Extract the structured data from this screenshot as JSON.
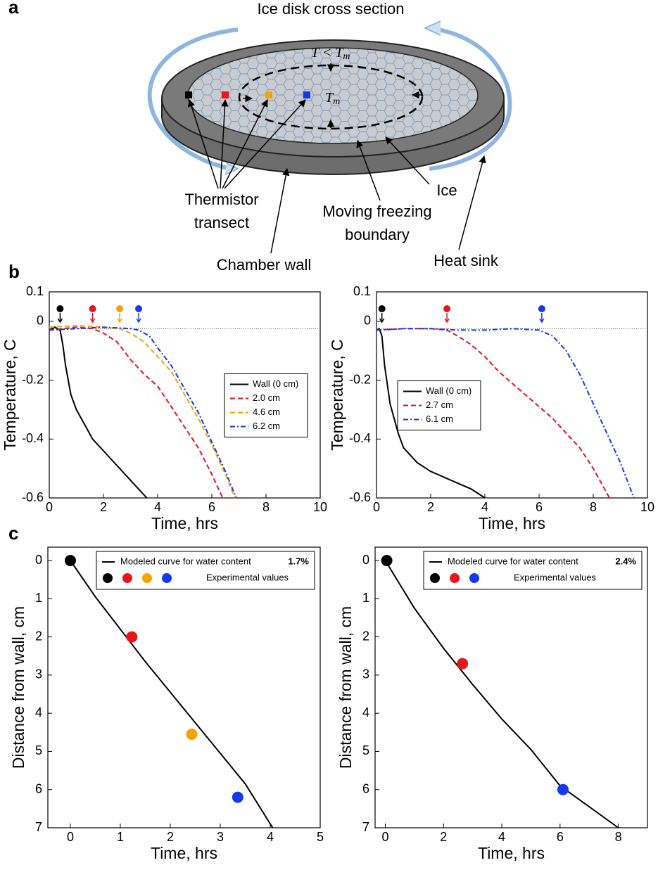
{
  "panel_labels": [
    "a",
    "b",
    "c"
  ],
  "diagram": {
    "title": "Ice disk cross section",
    "outer_label": {
      "base": "T < T",
      "sub": "m"
    },
    "inner_label": {
      "base": "T",
      "sub": "m"
    },
    "thermistor_label": [
      "Thermistor",
      "transect"
    ],
    "boundary_label": [
      "Moving freezing",
      "boundary"
    ],
    "ice_label": "Ice",
    "wall_label": "Chamber wall",
    "sink_label": "Heat sink"
  },
  "chart_data": [
    {
      "type": "line",
      "xlabel": "Time, hrs",
      "ylabel": "Temperature, C",
      "xlim": [
        0,
        10
      ],
      "xticks": [
        0,
        2,
        4,
        6,
        8,
        10
      ],
      "ylim": [
        -0.6,
        0.1
      ],
      "yticks": [
        -0.6,
        -0.4,
        -0.2,
        0,
        0.1
      ],
      "reference_line": -0.025,
      "legend": "center right",
      "onset_markers": {
        "x": [
          0.4,
          1.6,
          2.6,
          3.3
        ],
        "colors": [
          "#000000",
          "#e8141c",
          "#f5a300",
          "#1438f0"
        ]
      },
      "series": [
        {
          "name": "Wall (0 cm)",
          "color": "#000000",
          "dash": "solid",
          "x": [
            0,
            0.2,
            0.4,
            0.5,
            0.6,
            0.8,
            1,
            1.3,
            1.6,
            2,
            2.5,
            3,
            3.3,
            3.6
          ],
          "values": [
            -0.03,
            -0.02,
            -0.03,
            -0.08,
            -0.15,
            -0.25,
            -0.3,
            -0.35,
            -0.4,
            -0.44,
            -0.49,
            -0.54,
            -0.57,
            -0.6
          ]
        },
        {
          "name": "2.0 cm",
          "color": "#e8141c",
          "dash": "dashed",
          "x": [
            0,
            1,
            1.6,
            2,
            2.5,
            3,
            3.5,
            4,
            4.5,
            5,
            5.5,
            6,
            6.4
          ],
          "values": [
            -0.03,
            -0.02,
            -0.025,
            -0.04,
            -0.07,
            -0.13,
            -0.18,
            -0.22,
            -0.29,
            -0.36,
            -0.43,
            -0.52,
            -0.6
          ]
        },
        {
          "name": "4.6 cm",
          "color": "#f5a300",
          "dash": "dashed",
          "x": [
            0,
            1,
            2,
            2.6,
            3,
            3.5,
            4,
            4.5,
            5,
            5.5,
            6,
            6.5,
            6.85
          ],
          "values": [
            -0.02,
            -0.015,
            -0.02,
            -0.025,
            -0.04,
            -0.07,
            -0.12,
            -0.17,
            -0.25,
            -0.33,
            -0.42,
            -0.52,
            -0.6
          ]
        },
        {
          "name": "6.2 cm",
          "color": "#1438f0",
          "dash": "dashdot",
          "x": [
            0,
            1,
            2,
            3,
            3.3,
            3.7,
            4,
            4.5,
            5,
            5.5,
            6,
            6.5,
            6.9
          ],
          "values": [
            -0.03,
            -0.025,
            -0.02,
            -0.025,
            -0.03,
            -0.05,
            -0.09,
            -0.15,
            -0.23,
            -0.31,
            -0.41,
            -0.51,
            -0.6
          ]
        }
      ]
    },
    {
      "type": "line",
      "xlabel": "Time, hrs",
      "ylabel": "Temperature, C",
      "xlim": [
        0,
        10
      ],
      "xticks": [
        0,
        2,
        4,
        6,
        8,
        10
      ],
      "ylim": [
        -0.6,
        0.1
      ],
      "yticks": [
        -0.6,
        -0.4,
        -0.2,
        0,
        0.1
      ],
      "reference_line": -0.025,
      "legend": "center left",
      "onset_markers": {
        "x": [
          0.2,
          2.6,
          6.1
        ],
        "colors": [
          "#000000",
          "#e8141c",
          "#1438f0"
        ]
      },
      "series": [
        {
          "name": "Wall (0 cm)",
          "color": "#000000",
          "dash": "solid",
          "x": [
            0,
            0.1,
            0.2,
            0.3,
            0.5,
            0.8,
            1,
            1.5,
            2,
            2.5,
            3,
            3.5,
            4
          ],
          "values": [
            -0.03,
            -0.025,
            -0.05,
            -0.15,
            -0.28,
            -0.38,
            -0.43,
            -0.48,
            -0.51,
            -0.53,
            -0.55,
            -0.57,
            -0.6
          ]
        },
        {
          "name": "2.7 cm",
          "color": "#e8141c",
          "dash": "dashed",
          "x": [
            0,
            1,
            2,
            2.6,
            3,
            3.5,
            4,
            4.5,
            5,
            5.5,
            6,
            6.5,
            7,
            7.5,
            8,
            8.6
          ],
          "values": [
            -0.03,
            -0.025,
            -0.025,
            -0.03,
            -0.05,
            -0.08,
            -0.12,
            -0.17,
            -0.21,
            -0.25,
            -0.29,
            -0.33,
            -0.38,
            -0.43,
            -0.5,
            -0.6
          ]
        },
        {
          "name": "6.1 cm",
          "color": "#1438f0",
          "dash": "dashdot",
          "x": [
            0,
            1,
            2,
            3,
            4,
            5,
            6,
            6.5,
            7,
            7.5,
            8,
            8.5,
            9,
            9.5
          ],
          "values": [
            -0.03,
            -0.025,
            -0.025,
            -0.03,
            -0.03,
            -0.025,
            -0.03,
            -0.05,
            -0.1,
            -0.18,
            -0.28,
            -0.38,
            -0.48,
            -0.6
          ]
        }
      ]
    },
    {
      "type": "scatter",
      "xlabel": "Time, hrs",
      "ylabel": "Distance from wall, cm",
      "xlim": [
        -0.45,
        5
      ],
      "xticks": [
        0,
        1,
        2,
        3,
        4,
        5
      ],
      "ylim": [
        -0.35,
        7
      ],
      "yticks": [
        0,
        1,
        2,
        3,
        4,
        5,
        6,
        7
      ],
      "y_inverted": true,
      "legend": "top right",
      "series": [
        {
          "name": "Modeled curve for water content",
          "note": "1.7%",
          "color": "#000000",
          "dash": "solid",
          "x": [
            0,
            0.5,
            1,
            1.5,
            2,
            2.5,
            3,
            3.5,
            4.05
          ],
          "values": [
            0,
            0.95,
            1.8,
            2.65,
            3.45,
            4.25,
            5.05,
            5.85,
            7
          ]
        }
      ],
      "points": {
        "name": "Experimental values",
        "x": [
          0,
          1.23,
          2.43,
          3.35
        ],
        "values": [
          0,
          2,
          4.55,
          6.2
        ],
        "colors": [
          "#000000",
          "#e8141c",
          "#f5a300",
          "#1438f0"
        ]
      }
    },
    {
      "type": "scatter",
      "xlabel": "Time, hrs",
      "ylabel": "Distance from wall, cm",
      "xlim": [
        -0.35,
        9
      ],
      "xticks": [
        0,
        2,
        4,
        6,
        8
      ],
      "ylim": [
        -0.35,
        7
      ],
      "yticks": [
        0,
        1,
        2,
        3,
        4,
        5,
        6,
        7
      ],
      "y_inverted": true,
      "legend": "top right",
      "series": [
        {
          "name": "Modeled curve for water content",
          "note": "2.4%",
          "color": "#000000",
          "dash": "solid",
          "x": [
            0,
            1,
            2,
            3,
            4,
            5,
            6,
            7,
            8
          ],
          "values": [
            0,
            1.25,
            2.3,
            3.25,
            4.15,
            4.95,
            5.9,
            6.45,
            7
          ]
        }
      ],
      "points": {
        "name": "Experimental values",
        "x": [
          0.05,
          2.65,
          6.1
        ],
        "values": [
          0,
          2.7,
          6
        ],
        "colors": [
          "#000000",
          "#e8141c",
          "#1438f0"
        ]
      }
    }
  ]
}
